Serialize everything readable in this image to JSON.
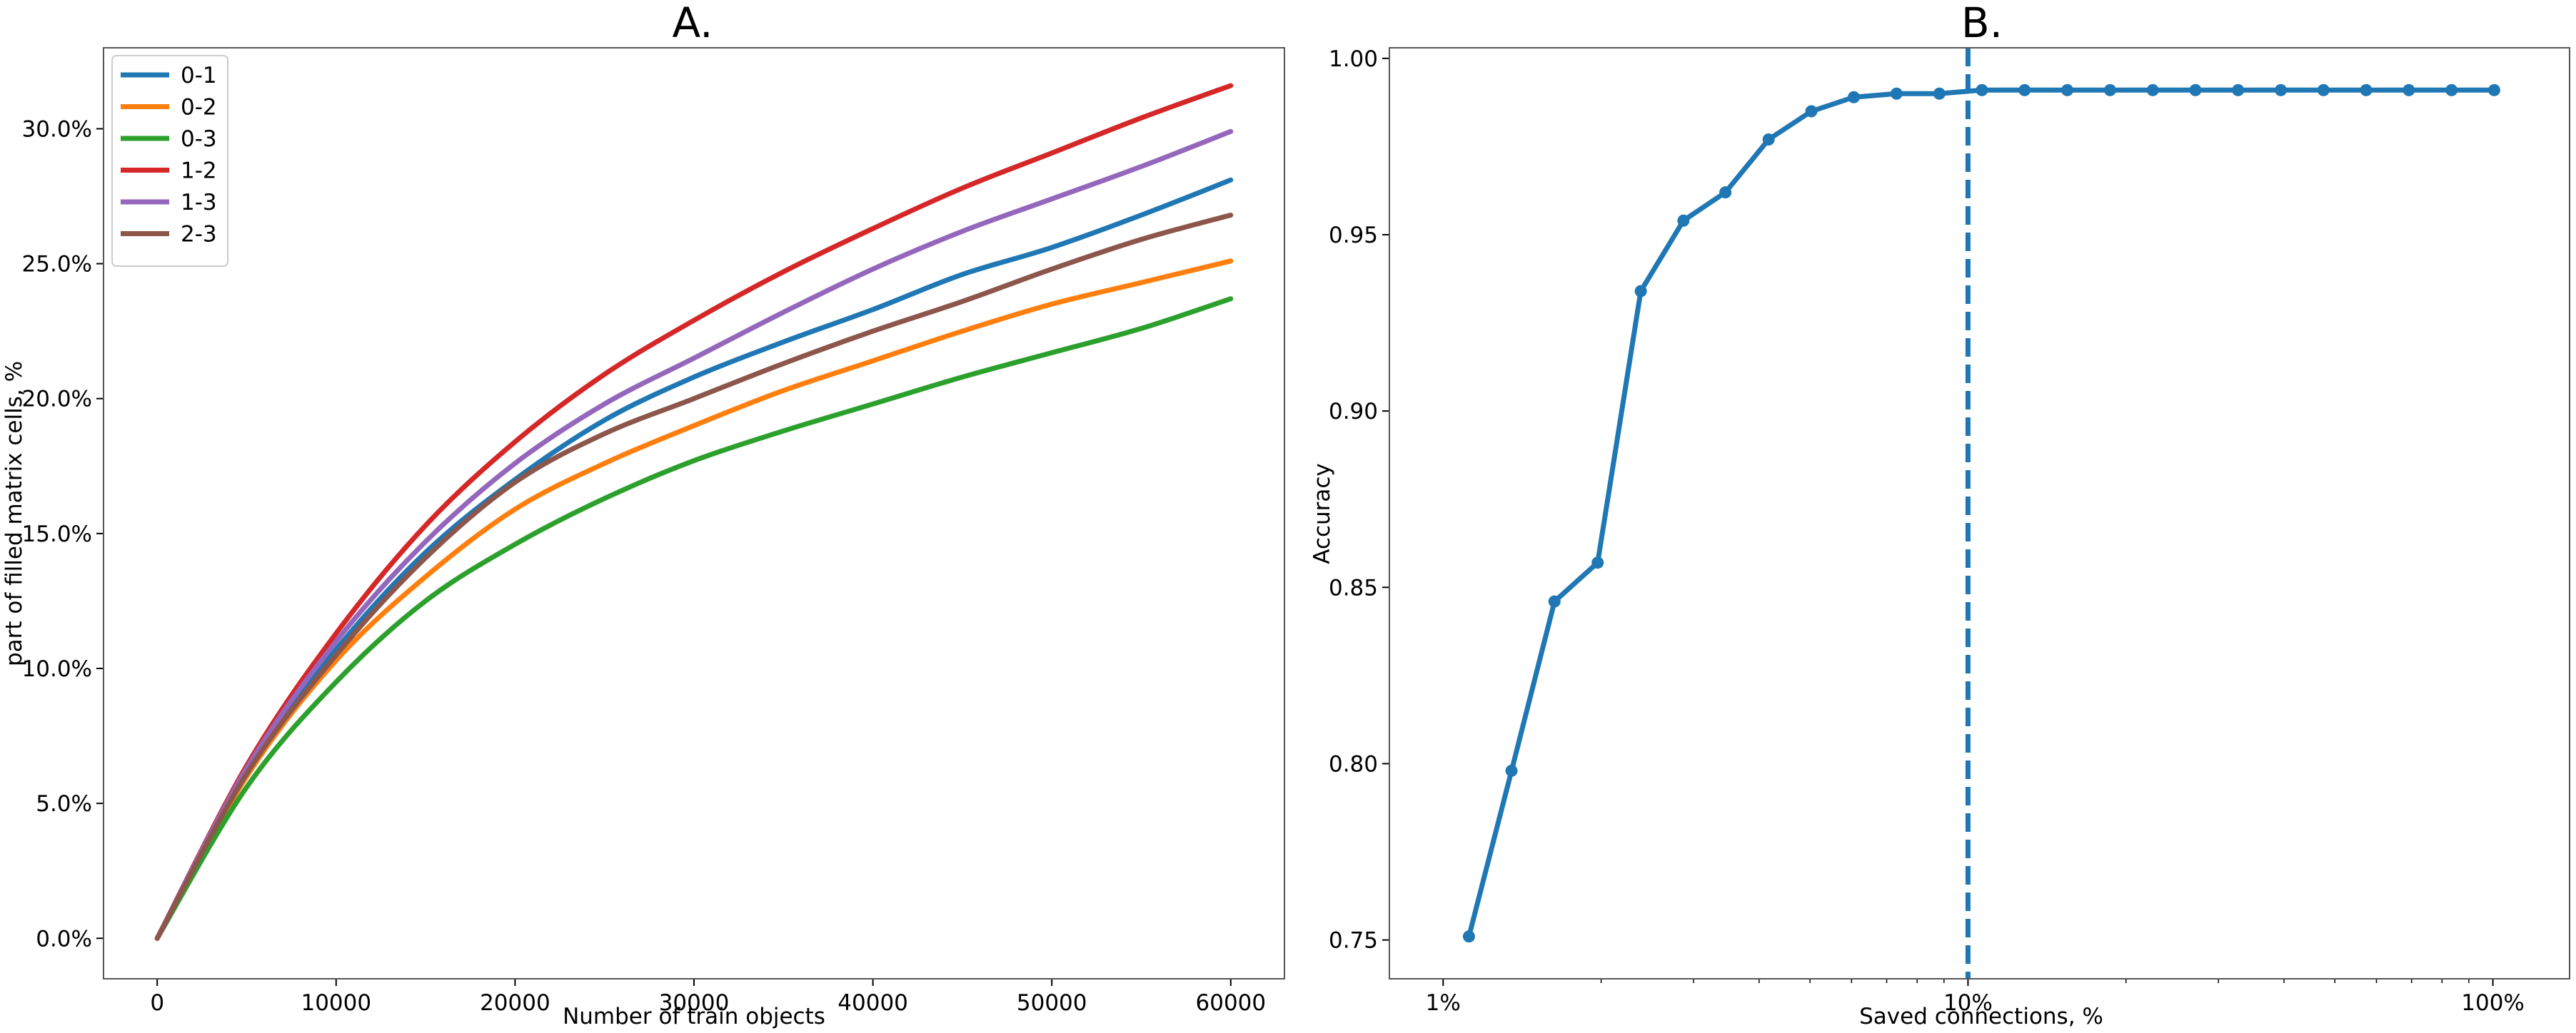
{
  "chart_data": [
    {
      "type": "line",
      "panel_label": "A.",
      "title": "",
      "xlabel": "Number of train objects",
      "ylabel": "part of filled matrix cells, %",
      "xlim": [
        -3000,
        63000
      ],
      "ylim": [
        -1.5,
        33.0
      ],
      "xticks": [
        0,
        10000,
        20000,
        30000,
        40000,
        50000,
        60000
      ],
      "xtick_labels": [
        "0",
        "10000",
        "20000",
        "30000",
        "40000",
        "50000",
        "60000"
      ],
      "yticks": [
        0,
        5,
        10,
        15,
        20,
        25,
        30
      ],
      "ytick_labels": [
        "0.0%",
        "5.0%",
        "10.0%",
        "15.0%",
        "20.0%",
        "25.0%",
        "30.0%"
      ],
      "grid": false,
      "legend": "top-left",
      "x": [
        0,
        5000,
        10000,
        15000,
        20000,
        25000,
        30000,
        35000,
        40000,
        45000,
        50000,
        55000,
        60000
      ],
      "series": [
        {
          "name": "0-1",
          "color": "#1f77b4",
          "values": [
            0,
            6.2,
            10.7,
            14.3,
            17.0,
            19.2,
            20.8,
            22.1,
            23.3,
            24.6,
            25.6,
            26.8,
            28.1
          ]
        },
        {
          "name": "0-2",
          "color": "#ff7f0e",
          "values": [
            0,
            6.0,
            10.3,
            13.4,
            15.9,
            17.6,
            19.0,
            20.3,
            21.4,
            22.5,
            23.5,
            24.3,
            25.1
          ]
        },
        {
          "name": "0-3",
          "color": "#2ca02c",
          "values": [
            0,
            5.6,
            9.5,
            12.5,
            14.6,
            16.3,
            17.7,
            18.8,
            19.8,
            20.8,
            21.7,
            22.6,
            23.7
          ]
        },
        {
          "name": "1-2",
          "color": "#d62728",
          "values": [
            0,
            6.4,
            11.3,
            15.3,
            18.4,
            20.9,
            22.9,
            24.7,
            26.3,
            27.8,
            29.1,
            30.4,
            31.6
          ]
        },
        {
          "name": "1-3",
          "color": "#9467bd",
          "values": [
            0,
            6.3,
            11.0,
            14.7,
            17.6,
            19.8,
            21.5,
            23.2,
            24.8,
            26.2,
            27.4,
            28.6,
            29.9
          ]
        },
        {
          "name": "2-3",
          "color": "#8c564b",
          "values": [
            0,
            6.1,
            10.5,
            14.1,
            16.9,
            18.7,
            20.0,
            21.3,
            22.5,
            23.6,
            24.8,
            25.9,
            26.8
          ]
        }
      ]
    },
    {
      "type": "line",
      "panel_label": "B.",
      "title": "",
      "xlabel": "Saved connections, %",
      "ylabel": "Accuracy",
      "xscale": "log",
      "xlim": [
        0.79,
        140
      ],
      "ylim": [
        0.739,
        1.003
      ],
      "xticks": [
        1,
        10,
        100
      ],
      "xtick_labels": [
        "1%",
        "10%",
        "100%"
      ],
      "yticks": [
        0.75,
        0.8,
        0.85,
        0.9,
        0.95,
        1.0
      ],
      "ytick_labels": [
        "0.75",
        "0.80",
        "0.85",
        "0.90",
        "0.95",
        "1.00"
      ],
      "grid": false,
      "vline": {
        "x": 10,
        "style": "dashed",
        "color": "#1f77b4"
      },
      "series": [
        {
          "color": "#1f77b4",
          "marker": "circle",
          "x": [
            1.12,
            1.35,
            1.63,
            1.97,
            2.38,
            2.87,
            3.45,
            4.17,
            5.03,
            6.06,
            7.31,
            8.82,
            10.63,
            12.82,
            15.46,
            18.65,
            22.49,
            27.12,
            32.7,
            39.44,
            47.56,
            57.36,
            69.17,
            83.42,
            100.59
          ],
          "values": [
            0.751,
            0.798,
            0.846,
            0.857,
            0.934,
            0.954,
            0.962,
            0.977,
            0.985,
            0.989,
            0.99,
            0.99,
            0.991,
            0.991,
            0.991,
            0.991,
            0.991,
            0.991,
            0.991,
            0.991,
            0.991,
            0.991,
            0.991,
            0.991,
            0.991
          ]
        }
      ]
    }
  ]
}
